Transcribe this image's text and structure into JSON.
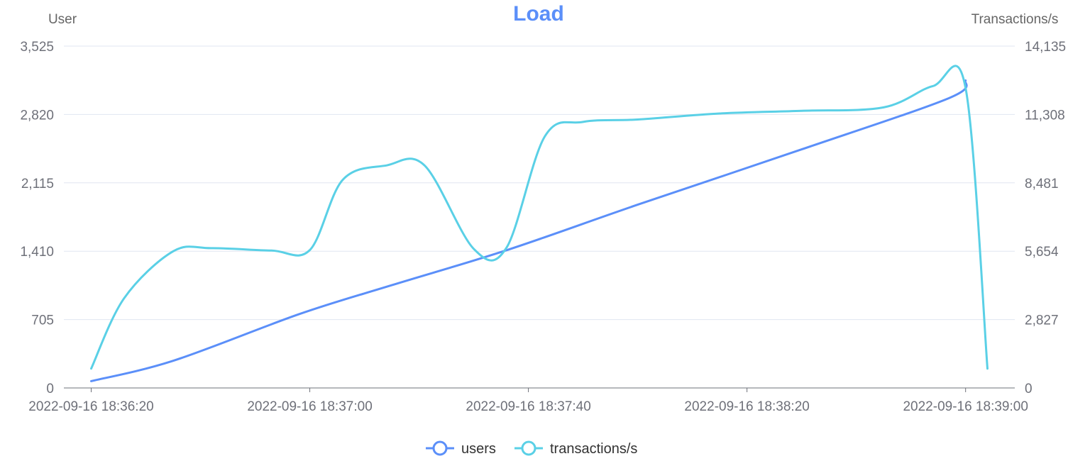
{
  "chart_data": {
    "type": "line",
    "title": "Load",
    "y_left_label": "User",
    "y_right_label": "Transactions/s",
    "y_left_ticks": [
      "0",
      "705",
      "1,410",
      "2,115",
      "2,820",
      "3,525"
    ],
    "y_right_ticks": [
      "0",
      "2,827",
      "5,654",
      "8,481",
      "11,308",
      "14,135"
    ],
    "ylim_left": [
      0,
      3525
    ],
    "ylim_right": [
      0,
      14135
    ],
    "x_ticks": [
      "2022-09-16 18:36:20",
      "2022-09-16 18:37:00",
      "2022-09-16 18:37:40",
      "2022-09-16 18:38:20",
      "2022-09-16 18:39:00"
    ],
    "xlim": [
      "2022-09-16 18:36:15",
      "2022-09-16 18:39:09"
    ],
    "grid": true,
    "legend_position": "bottom-center",
    "series": [
      {
        "name": "users",
        "axis": "left",
        "color": "#5b8ff9",
        "x": [
          "2022-09-16 18:36:20",
          "2022-09-16 18:36:35",
          "2022-09-16 18:36:58",
          "2022-09-16 18:37:15",
          "2022-09-16 18:37:36",
          "2022-09-16 18:38:00",
          "2022-09-16 18:38:30",
          "2022-09-16 18:38:57",
          "2022-09-16 18:39:00"
        ],
        "values": [
          70,
          280,
          760,
          1060,
          1420,
          1890,
          2460,
          2990,
          3170
        ]
      },
      {
        "name": "transactions/s",
        "axis": "right",
        "color": "#5ad0e6",
        "x": [
          "2022-09-16 18:36:20",
          "2022-09-16 18:36:26",
          "2022-09-16 18:36:35",
          "2022-09-16 18:36:42",
          "2022-09-16 18:36:53",
          "2022-09-16 18:37:00",
          "2022-09-16 18:37:06",
          "2022-09-16 18:37:14",
          "2022-09-16 18:37:21",
          "2022-09-16 18:37:30",
          "2022-09-16 18:37:36",
          "2022-09-16 18:37:43",
          "2022-09-16 18:37:50",
          "2022-09-16 18:38:00",
          "2022-09-16 18:38:15",
          "2022-09-16 18:38:30",
          "2022-09-16 18:38:45",
          "2022-09-16 18:38:54",
          "2022-09-16 18:39:00",
          "2022-09-16 18:39:04"
        ],
        "values": [
          800,
          3700,
          5650,
          5780,
          5680,
          5700,
          8600,
          9200,
          9200,
          5750,
          5800,
          10400,
          11000,
          11100,
          11350,
          11460,
          11600,
          12480,
          12400,
          800
        ]
      }
    ]
  }
}
